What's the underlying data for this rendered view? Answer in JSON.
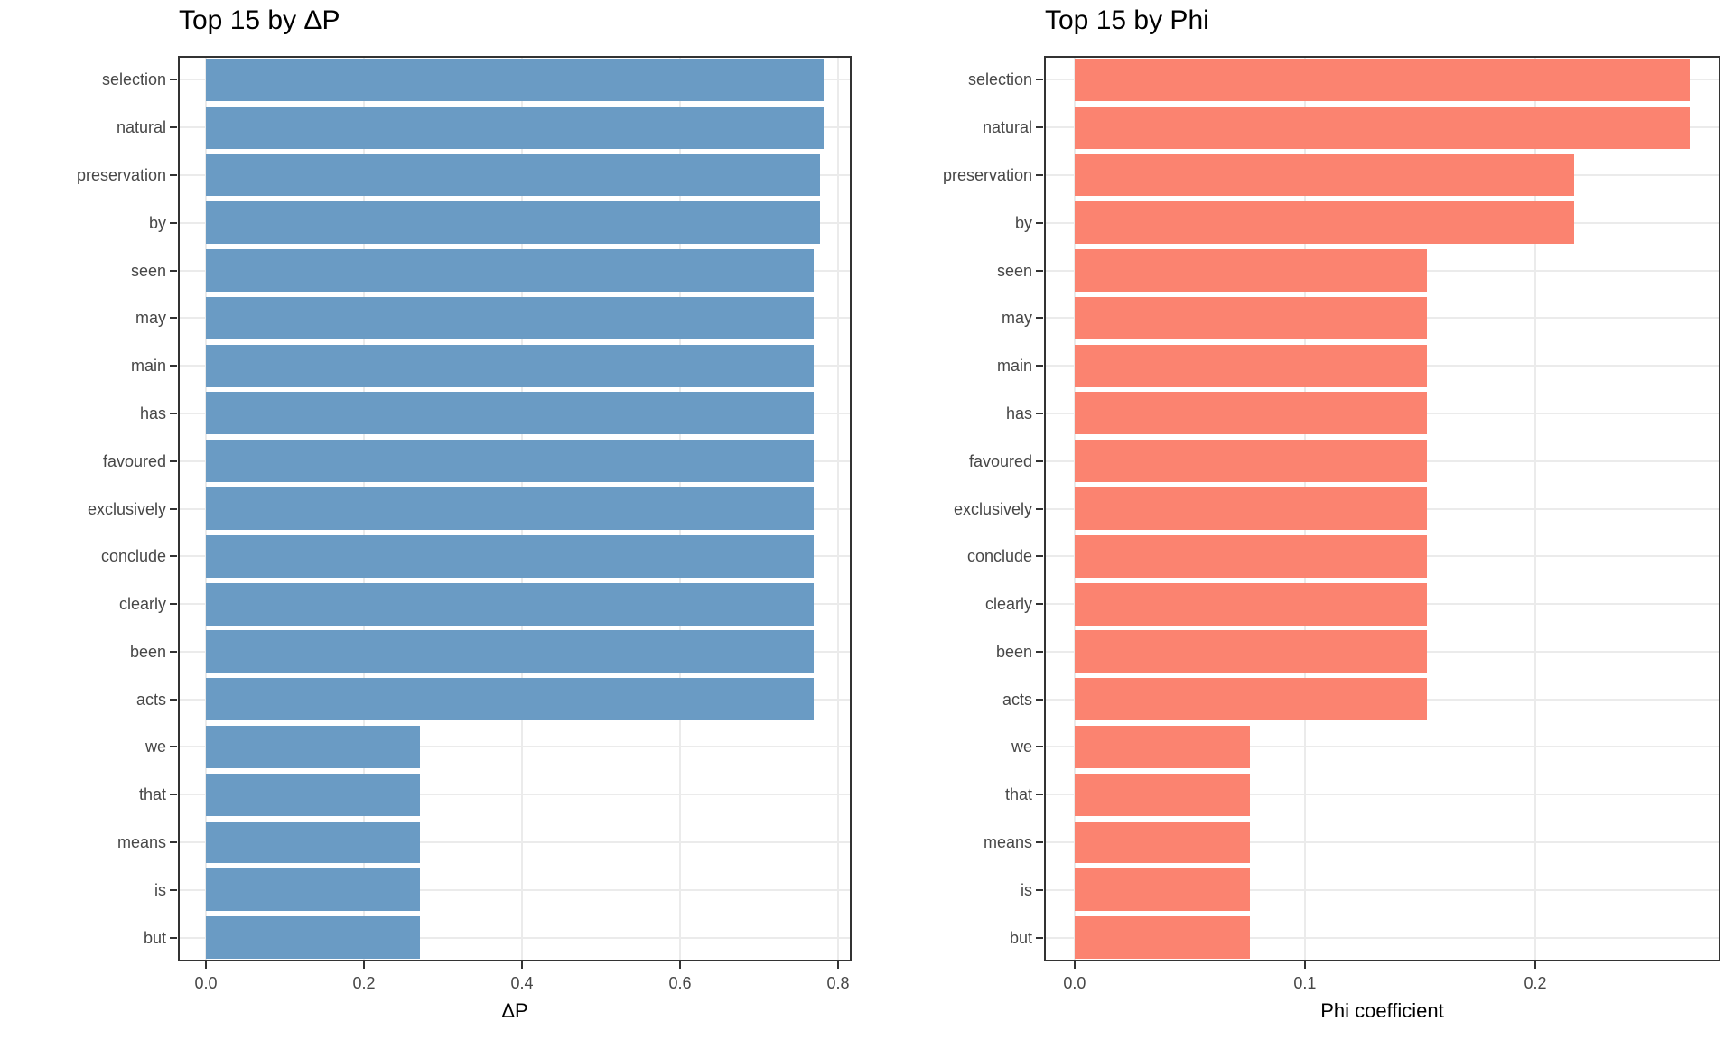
{
  "chart_data": [
    {
      "type": "bar",
      "orientation": "horizontal",
      "title": "Top 15 by ΔP",
      "xlabel": "ΔP",
      "ylabel": "",
      "categories": [
        "selection",
        "natural",
        "preservation",
        "by",
        "seen",
        "may",
        "main",
        "has",
        "favoured",
        "exclusively",
        "conclude",
        "clearly",
        "been",
        "acts",
        "we",
        "that",
        "means",
        "is",
        "but"
      ],
      "values": [
        0.782,
        0.782,
        0.777,
        0.777,
        0.769,
        0.769,
        0.769,
        0.769,
        0.769,
        0.769,
        0.769,
        0.769,
        0.769,
        0.769,
        0.271,
        0.271,
        0.271,
        0.271,
        0.271
      ],
      "xlim": [
        -0.0354,
        0.8171
      ],
      "x_ticks": [
        0.0,
        0.2,
        0.4,
        0.6,
        0.8
      ],
      "x_tick_labels": [
        "0.0",
        "0.2",
        "0.4",
        "0.6",
        "0.8"
      ],
      "bar_color": "#6A9BC4",
      "grid": "major-on",
      "legend": "none"
    },
    {
      "type": "bar",
      "orientation": "horizontal",
      "title": "Top 15 by Phi",
      "xlabel": "Phi coefficient",
      "ylabel": "",
      "categories": [
        "selection",
        "natural",
        "preservation",
        "by",
        "seen",
        "may",
        "main",
        "has",
        "favoured",
        "exclusively",
        "conclude",
        "clearly",
        "been",
        "acts",
        "we",
        "that",
        "means",
        "is",
        "but"
      ],
      "values": [
        0.267,
        0.267,
        0.217,
        0.217,
        0.153,
        0.153,
        0.153,
        0.153,
        0.153,
        0.153,
        0.153,
        0.153,
        0.153,
        0.153,
        0.076,
        0.076,
        0.076,
        0.076,
        0.076
      ],
      "xlim": [
        -0.0133,
        0.2804
      ],
      "x_ticks": [
        0.0,
        0.1,
        0.2
      ],
      "x_tick_labels": [
        "0.0",
        "0.1",
        "0.2"
      ],
      "bar_color": "#FB8370",
      "grid": "major-on",
      "legend": "none"
    }
  ],
  "colors": {
    "panel_border": "#333333",
    "gridline": "#ebebeb",
    "tick_label": "#474747",
    "title_text": "#000000",
    "background": "#ffffff"
  }
}
